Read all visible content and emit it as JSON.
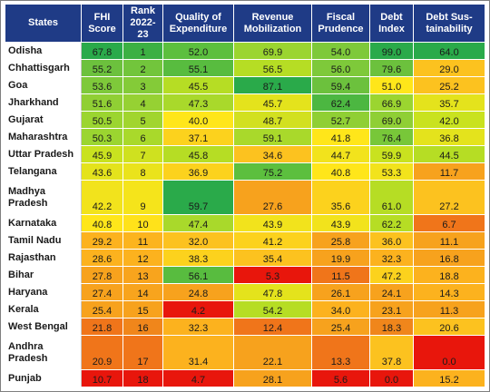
{
  "headers": [
    "States",
    "FHI Score",
    "Rank 2022-23",
    "Quality of Expenditure",
    "Revenue Mobilization",
    "Fiscal Prudence",
    "Debt Index",
    "Debt Sustainability"
  ],
  "header_display": [
    [
      "States"
    ],
    [
      "FHI",
      "Score"
    ],
    [
      "Rank",
      "2022-",
      "23"
    ],
    [
      "Quality of",
      "Expenditure"
    ],
    [
      "Revenue",
      "Mobilization"
    ],
    [
      "Fiscal",
      "Prudence"
    ],
    [
      "Debt",
      "Index"
    ],
    [
      "Debt Sus-",
      "tainability"
    ]
  ],
  "colors": {
    "header_bg": "#1f3b86",
    "scale": [
      "#e8160c",
      "#f0751a",
      "#f7a21d",
      "#fcc21f",
      "#ffe61a",
      "#c9e21f",
      "#9bd530",
      "#5cbf3e",
      "#2aaa4a"
    ]
  },
  "rows": [
    {
      "state": [
        "Odisha"
      ],
      "fhi": "67.8",
      "rank": "1",
      "qe": "52.0",
      "rm": "69.9",
      "fp": "54.0",
      "di": "99.0",
      "ds": "64.0",
      "bg": [
        "#2aaa4a",
        "#3cb043",
        "#5cbf3e",
        "#9bd530",
        "#7ec93a",
        "#2aaa4a",
        "#2aaa4a"
      ]
    },
    {
      "state": [
        "Chhattisgarh"
      ],
      "fhi": "55.2",
      "rank": "2",
      "qe": "55.1",
      "rm": "56.5",
      "fp": "56.0",
      "di": "79.6",
      "ds": "29.0",
      "bg": [
        "#6cc13d",
        "#72c53c",
        "#58bc3f",
        "#b6dd24",
        "#7ec93a",
        "#6cc13d",
        "#fcc21f"
      ]
    },
    {
      "state": [
        "Goa"
      ],
      "fhi": "53.6",
      "rank": "3",
      "qe": "45.5",
      "rm": "87.1",
      "fp": "59.4",
      "di": "51.0",
      "ds": "25.2",
      "bg": [
        "#7ec93a",
        "#84cb38",
        "#b6dd24",
        "#2aaa4a",
        "#6cc13d",
        "#ffe61a",
        "#fcc21f"
      ]
    },
    {
      "state": [
        "Jharkhand"
      ],
      "fhi": "51.6",
      "rank": "4",
      "qe": "47.3",
      "rm": "45.7",
      "fp": "62.4",
      "di": "66.9",
      "ds": "35.7",
      "bg": [
        "#90cf34",
        "#96d133",
        "#a9d92b",
        "#e4e31c",
        "#4cb741",
        "#9bd530",
        "#e4e31c"
      ]
    },
    {
      "state": [
        "Gujarat"
      ],
      "fhi": "50.5",
      "rank": "5",
      "qe": "40.0",
      "rm": "48.7",
      "fp": "52.7",
      "di": "69.0",
      "ds": "42.0",
      "bg": [
        "#9bd530",
        "#a1d52e",
        "#ffe61a",
        "#d2e020",
        "#90cf34",
        "#8fcf35",
        "#c9e21f"
      ]
    },
    {
      "state": [
        "Maharashtra"
      ],
      "fhi": "50.3",
      "rank": "6",
      "qe": "37.1",
      "rm": "59.1",
      "fp": "41.8",
      "di": "76.4",
      "ds": "36.8",
      "bg": [
        "#9bd530",
        "#a9d92b",
        "#fcd21d",
        "#a9d92b",
        "#ffe61a",
        "#78c739",
        "#e4e31c"
      ]
    },
    {
      "state": [
        "Uttar Pradesh"
      ],
      "fhi": "45.9",
      "rank": "7",
      "qe": "45.8",
      "rm": "34.6",
      "fp": "44.7",
      "di": "59.9",
      "ds": "44.5",
      "bg": [
        "#c9e21f",
        "#cfe11f",
        "#b6dd24",
        "#fcc21f",
        "#f2e31c",
        "#c9e21f",
        "#b6dd24"
      ]
    },
    {
      "state": [
        "Telangana"
      ],
      "fhi": "43.6",
      "rank": "8",
      "qe": "36.9",
      "rm": "75.2",
      "fp": "40.8",
      "di": "53.3",
      "ds": "11.7",
      "bg": [
        "#e4e31c",
        "#eae31b",
        "#fcd21d",
        "#5cbf3e",
        "#ffe61a",
        "#f2e31c",
        "#f7a21d"
      ]
    },
    {
      "state": [
        "Madhya",
        "Pradesh"
      ],
      "fhi": "42.2",
      "rank": "9",
      "qe": "59.7",
      "rm": "27.6",
      "fp": "35.6",
      "di": "61.0",
      "ds": "27.2",
      "bg": [
        "#f2e31c",
        "#f5e41b",
        "#2aaa4a",
        "#f7a21d",
        "#fcd21d",
        "#b6dd24",
        "#fcc21f"
      ],
      "tall": true
    },
    {
      "state": [
        "Karnataka"
      ],
      "fhi": "40.8",
      "rank": "10",
      "qe": "47.4",
      "rm": "43.9",
      "fp": "43.9",
      "di": "62.2",
      "ds": "6.7",
      "bg": [
        "#ffe61a",
        "#ffe21a",
        "#a9d92b",
        "#f2e31c",
        "#f2e31c",
        "#b6dd24",
        "#f0751a"
      ]
    },
    {
      "state": [
        "Tamil Nadu"
      ],
      "fhi": "29.2",
      "rank": "11",
      "qe": "32.0",
      "rm": "41.2",
      "fp": "25.8",
      "di": "36.0",
      "ds": "11.1",
      "bg": [
        "#fcb21e",
        "#fcb41e",
        "#fcc21f",
        "#fcd21d",
        "#f7a21d",
        "#fcc21f",
        "#f7a21d"
      ]
    },
    {
      "state": [
        "Rajasthan"
      ],
      "fhi": "28.6",
      "rank": "12",
      "qe": "38.3",
      "rm": "35.4",
      "fp": "19.9",
      "di": "32.3",
      "ds": "16.8",
      "bg": [
        "#fcb21e",
        "#fcb21e",
        "#fcd21d",
        "#fcc21f",
        "#f7a21d",
        "#fcb21e",
        "#f7a21d"
      ]
    },
    {
      "state": [
        "Bihar"
      ],
      "fhi": "27.8",
      "rank": "13",
      "qe": "56.1",
      "rm": "5.3",
      "fp": "11.5",
      "di": "47.2",
      "ds": "18.8",
      "bg": [
        "#f7a21d",
        "#f8a41d",
        "#58bc3f",
        "#e8160c",
        "#f0751a",
        "#fcd21d",
        "#fcb21e"
      ]
    },
    {
      "state": [
        "Haryana"
      ],
      "fhi": "27.4",
      "rank": "14",
      "qe": "24.8",
      "rm": "47.8",
      "fp": "26.1",
      "di": "24.1",
      "ds": "14.3",
      "bg": [
        "#f7a21d",
        "#f8a41d",
        "#f7a21d",
        "#e4e31c",
        "#f7a21d",
        "#f7a21d",
        "#fcb21e"
      ]
    },
    {
      "state": [
        "Kerala"
      ],
      "fhi": "25.4",
      "rank": "15",
      "qe": "4.2",
      "rm": "54.2",
      "fp": "34.0",
      "di": "23.1",
      "ds": "11.3",
      "bg": [
        "#f7a21d",
        "#f7a21d",
        "#e8160c",
        "#b6dd24",
        "#fcb21e",
        "#f7a21d",
        "#f7a21d"
      ]
    },
    {
      "state": [
        "West Bengal"
      ],
      "fhi": "21.8",
      "rank": "16",
      "qe": "32.3",
      "rm": "12.4",
      "fp": "25.4",
      "di": "18.3",
      "ds": "20.6",
      "bg": [
        "#f0751a",
        "#f0861b",
        "#fcb21e",
        "#f0751a",
        "#f7a21d",
        "#f0861b",
        "#fcc21f"
      ]
    },
    {
      "state": [
        "Andhra",
        "Pradesh"
      ],
      "fhi": "20.9",
      "rank": "17",
      "qe": "31.4",
      "rm": "22.1",
      "fp": "13.3",
      "di": "37.8",
      "ds": "0.0",
      "bg": [
        "#f0751a",
        "#f0751a",
        "#fcb21e",
        "#f7a21d",
        "#f0751a",
        "#fcc21f",
        "#e8160c"
      ],
      "tall": true
    },
    {
      "state": [
        "Punjab"
      ],
      "fhi": "10.7",
      "rank": "18",
      "qe": "4.7",
      "rm": "28.1",
      "fp": "5.6",
      "di": "0.0",
      "ds": "15.2",
      "bg": [
        "#e8160c",
        "#e8160c",
        "#e8160c",
        "#f7a21d",
        "#e8160c",
        "#e8160c",
        "#fcb21e"
      ]
    }
  ]
}
